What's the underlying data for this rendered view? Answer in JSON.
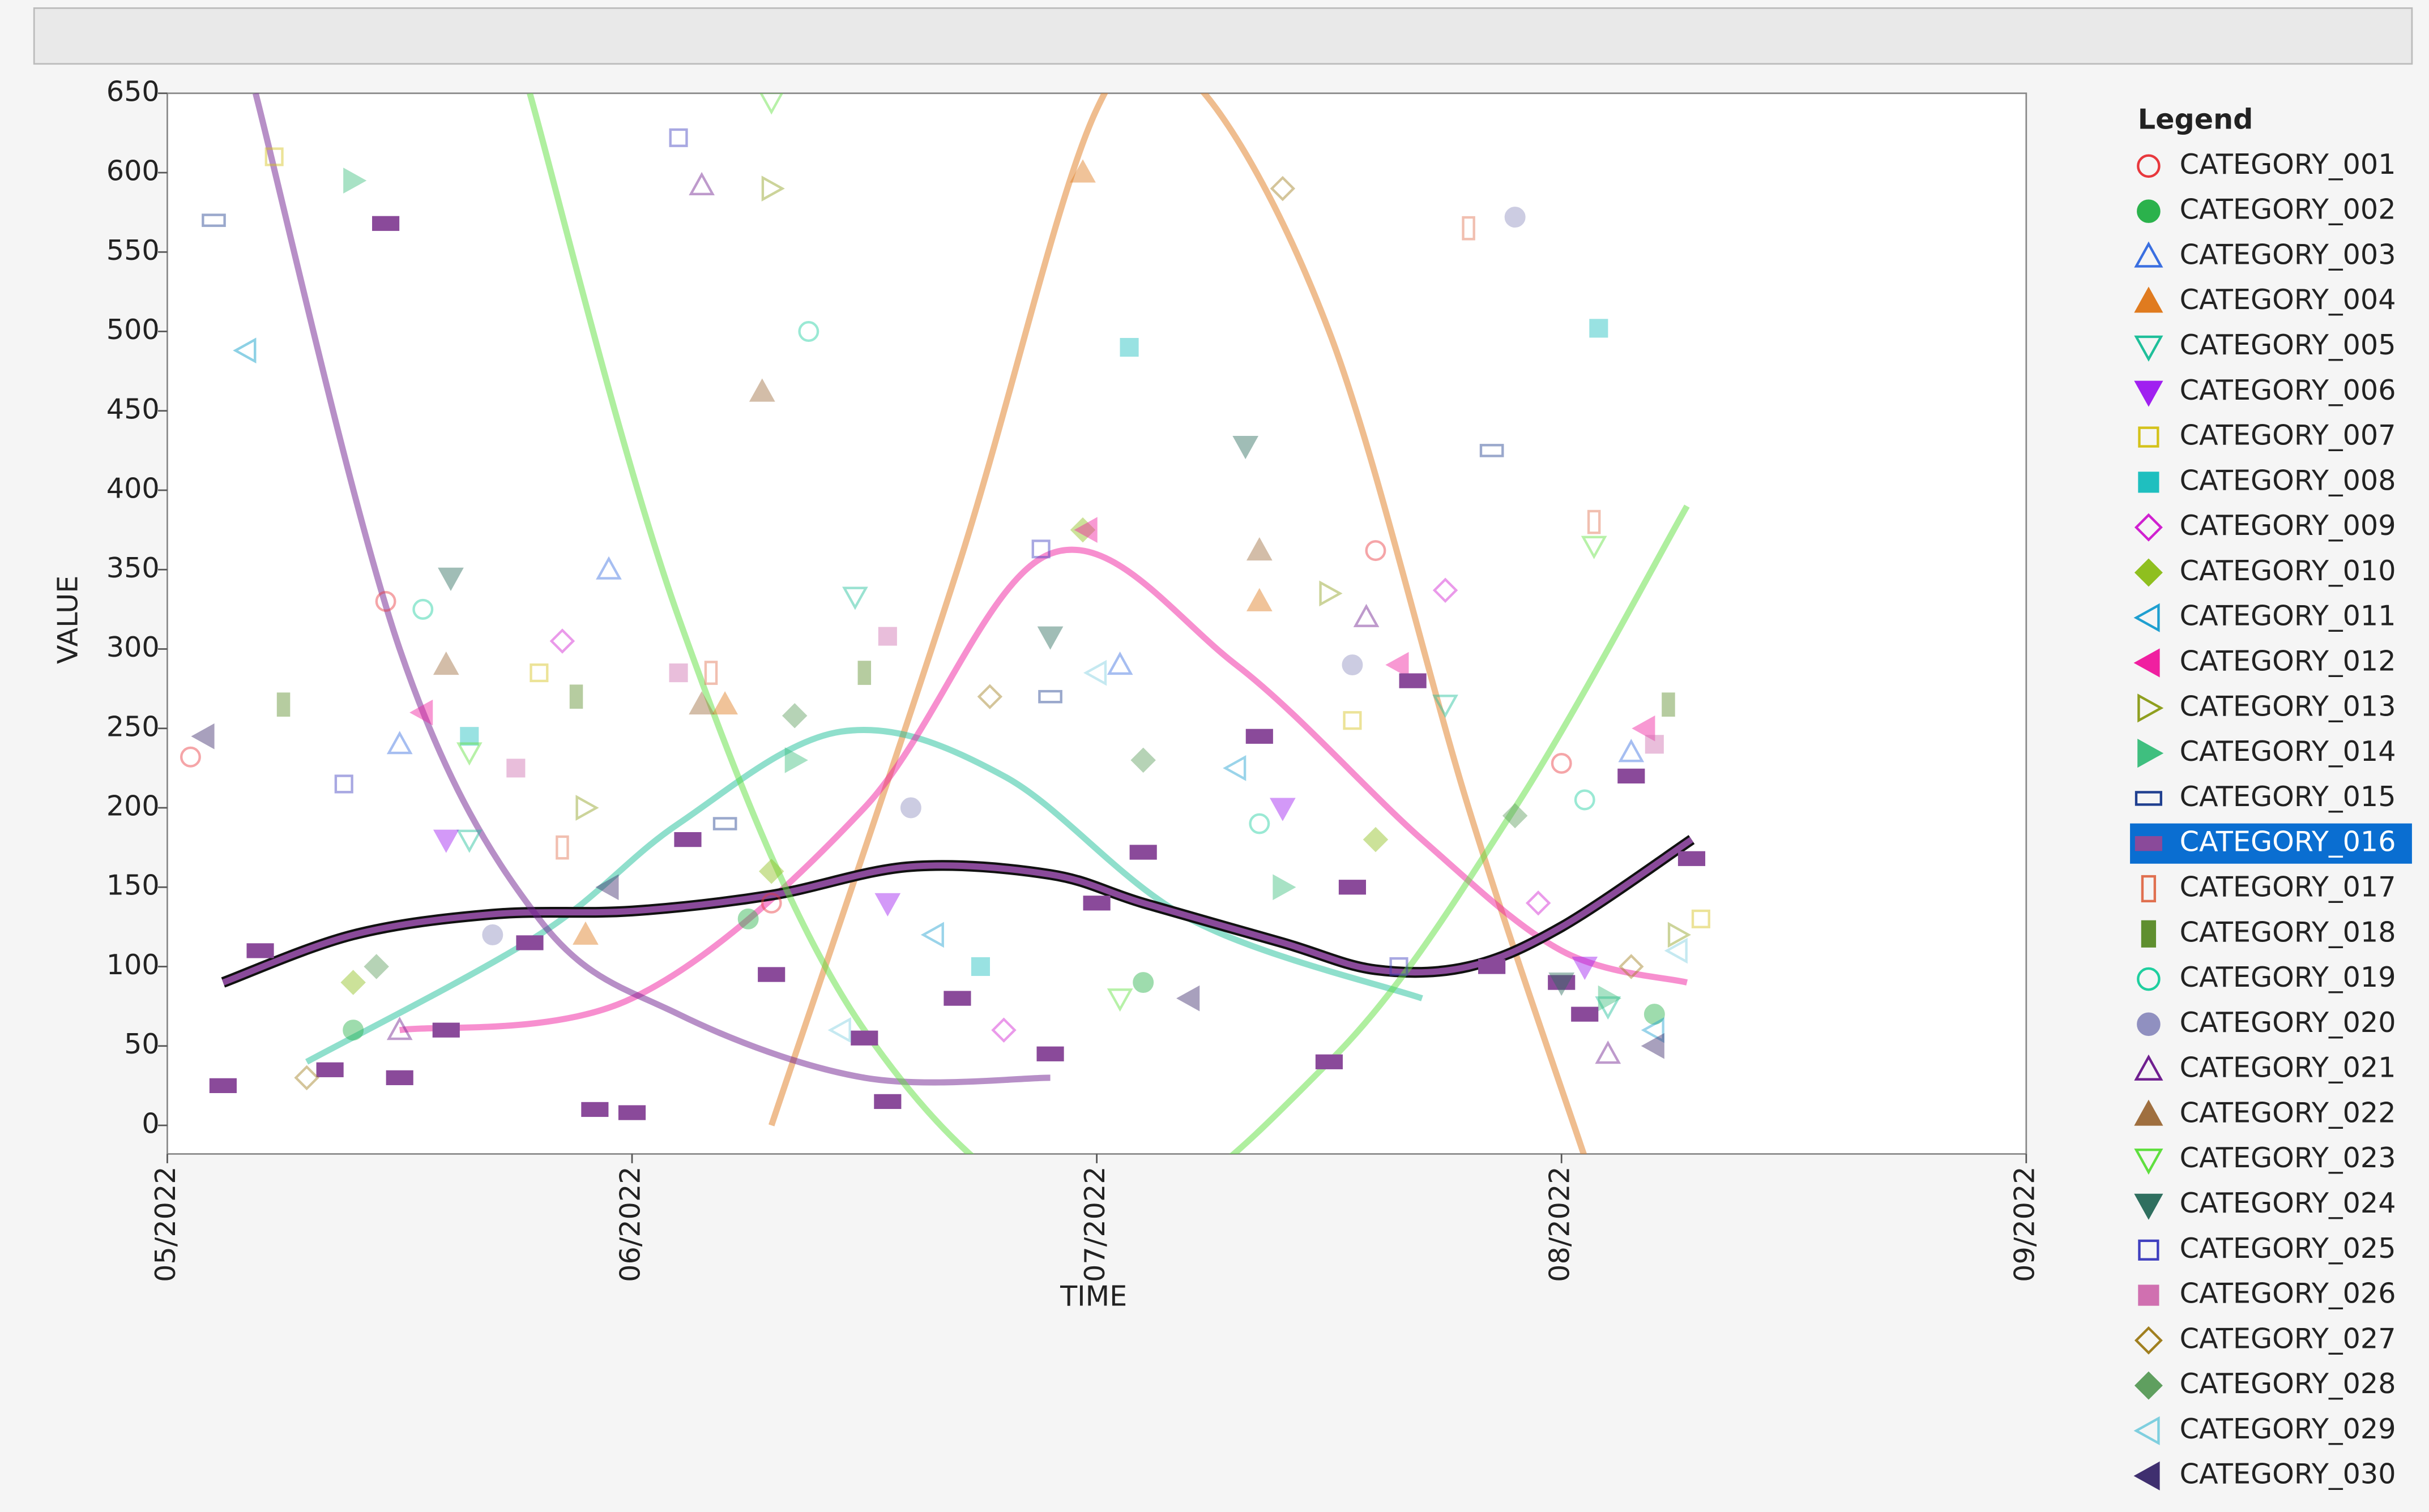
{
  "chart_data": {
    "type": "scatter",
    "x_label": "TIME",
    "y_label": "VALUE",
    "legend_title": "Legend",
    "legend": "right",
    "xlim": [
      0,
      4
    ],
    "xticks": [
      {
        "value": 0,
        "label": "05/2022"
      },
      {
        "value": 1,
        "label": "06/2022"
      },
      {
        "value": 2,
        "label": "07/2022"
      },
      {
        "value": 3,
        "label": "08/2022"
      },
      {
        "value": 4,
        "label": "09/2022"
      }
    ],
    "ylim": [
      -18,
      650
    ],
    "yticks": [
      0,
      50,
      100,
      150,
      200,
      250,
      300,
      350,
      400,
      450,
      500,
      550,
      600,
      650
    ],
    "series": [
      {
        "name": "CATEGORY_001",
        "color": "#e8383d",
        "marker": "circle",
        "filled": false,
        "x": [
          0.05,
          0.47,
          1.3,
          2.6,
          3.0
        ],
        "values": [
          232,
          330,
          140,
          362,
          228
        ]
      },
      {
        "name": "CATEGORY_002",
        "color": "#2bb24c",
        "marker": "circle",
        "filled": true,
        "x": [
          0.4,
          1.25,
          2.1,
          3.2
        ],
        "values": [
          60,
          130,
          90,
          70
        ]
      },
      {
        "name": "CATEGORY_003",
        "color": "#3a6fe0",
        "marker": "triangle",
        "filled": false,
        "x": [
          0.95,
          0.5,
          2.05,
          3.15
        ],
        "values": [
          350,
          240,
          290,
          235
        ]
      },
      {
        "name": "CATEGORY_004",
        "color": "#e07b1f",
        "marker": "triangle",
        "filled": true,
        "x": [
          1.2,
          1.97,
          2.35,
          0.9
        ],
        "values": [
          265,
          600,
          330,
          120
        ],
        "fit": {
          "x": [
            1.3,
            1.7,
            2.0,
            2.2,
            2.5,
            2.8,
            3.05
          ],
          "values": [
            0,
            350,
            640,
            660,
            500,
            200,
            -20
          ]
        }
      },
      {
        "name": "CATEGORY_005",
        "color": "#1fbf9a",
        "marker": "triangle-down",
        "filled": false,
        "x": [
          1.48,
          2.75,
          0.65,
          3.1
        ],
        "values": [
          333,
          265,
          180,
          75
        ],
        "fit": {
          "x": [
            0.3,
            0.8,
            1.1,
            1.45,
            1.8,
            2.2,
            2.7
          ],
          "values": [
            40,
            120,
            190,
            248,
            220,
            130,
            80
          ]
        }
      },
      {
        "name": "CATEGORY_006",
        "color": "#a020f0",
        "marker": "triangle-down",
        "filled": true,
        "x": [
          0.6,
          1.55,
          2.4,
          3.05
        ],
        "values": [
          180,
          140,
          200,
          100
        ]
      },
      {
        "name": "CATEGORY_007",
        "color": "#d4c21a",
        "marker": "square",
        "filled": false,
        "x": [
          0.23,
          0.8,
          2.55,
          3.3
        ],
        "values": [
          610,
          285,
          255,
          130
        ]
      },
      {
        "name": "CATEGORY_008",
        "color": "#1fbfbf",
        "marker": "square",
        "filled": true,
        "x": [
          0.65,
          2.07,
          3.08,
          1.75
        ],
        "values": [
          245,
          490,
          502,
          100
        ]
      },
      {
        "name": "CATEGORY_009",
        "color": "#d020d0",
        "marker": "diamond",
        "filled": false,
        "x": [
          0.85,
          2.75,
          1.8,
          2.95
        ],
        "values": [
          305,
          337,
          60,
          140
        ]
      },
      {
        "name": "CATEGORY_010",
        "color": "#8fbf1f",
        "marker": "diamond",
        "filled": true,
        "x": [
          1.97,
          1.3,
          0.4,
          2.6
        ],
        "values": [
          375,
          160,
          90,
          180
        ]
      },
      {
        "name": "CATEGORY_011",
        "color": "#1f9fd0",
        "marker": "triangle-left",
        "filled": false,
        "x": [
          0.17,
          1.65,
          2.3,
          3.2
        ],
        "values": [
          488,
          120,
          225,
          60
        ]
      },
      {
        "name": "CATEGORY_012",
        "color": "#f01fa0",
        "marker": "triangle-left",
        "filled": true,
        "x": [
          0.55,
          1.98,
          2.65,
          3.18
        ],
        "values": [
          260,
          375,
          290,
          250
        ],
        "fit": {
          "x": [
            0.5,
            1.0,
            1.5,
            1.9,
            2.3,
            2.7,
            3.0,
            3.27
          ],
          "values": [
            60,
            80,
            200,
            360,
            290,
            180,
            110,
            90
          ]
        }
      },
      {
        "name": "CATEGORY_013",
        "color": "#8f9f1f",
        "marker": "triangle-right",
        "filled": false,
        "x": [
          1.3,
          2.5,
          0.9,
          3.25
        ],
        "values": [
          590,
          335,
          200,
          120
        ]
      },
      {
        "name": "CATEGORY_014",
        "color": "#3fbf7f",
        "marker": "triangle-right",
        "filled": true,
        "x": [
          0.4,
          1.35,
          2.4,
          3.1
        ],
        "values": [
          595,
          230,
          150,
          80
        ]
      },
      {
        "name": "CATEGORY_015",
        "color": "#1f3f8f",
        "marker": "rect-wide",
        "filled": false,
        "x": [
          0.1,
          1.9,
          2.85,
          1.2
        ],
        "values": [
          570,
          270,
          425,
          190
        ]
      },
      {
        "name": "CATEGORY_016",
        "color": "#8a4a9a",
        "marker": "rect-wide",
        "filled": true,
        "selected": true,
        "x": [
          0.12,
          0.2,
          0.35,
          0.47,
          0.6,
          0.78,
          0.92,
          1.12,
          1.3,
          1.55,
          1.7,
          1.9,
          2.1,
          2.35,
          2.55,
          2.68,
          2.85,
          3.0,
          3.15,
          3.28,
          0.5,
          1.0,
          1.5,
          2.0,
          2.5,
          3.05
        ],
        "values": [
          25,
          110,
          35,
          568,
          60,
          115,
          10,
          180,
          95,
          15,
          80,
          45,
          172,
          245,
          150,
          280,
          100,
          90,
          220,
          168,
          30,
          8,
          55,
          140,
          40,
          70
        ],
        "fit": {
          "x": [
            0.12,
            0.4,
            0.7,
            1.0,
            1.3,
            1.6,
            1.9,
            2.1,
            2.4,
            2.6,
            2.8,
            3.0,
            3.28
          ],
          "values": [
            90,
            120,
            133,
            135,
            145,
            163,
            158,
            140,
            115,
            98,
            100,
            125,
            180
          ]
        }
      },
      {
        "name": "CATEGORY_017",
        "color": "#e07050",
        "marker": "rect-tall",
        "filled": false,
        "x": [
          0.85,
          1.17,
          2.8,
          3.07
        ],
        "values": [
          175,
          285,
          565,
          380
        ]
      },
      {
        "name": "CATEGORY_018",
        "color": "#5f8f2f",
        "marker": "rect-tall",
        "filled": true,
        "x": [
          0.25,
          0.88,
          1.5,
          3.23
        ],
        "values": [
          265,
          270,
          285,
          265
        ]
      },
      {
        "name": "CATEGORY_019",
        "color": "#1fcf9f",
        "marker": "circle",
        "filled": false,
        "x": [
          1.38,
          0.55,
          2.35,
          3.05
        ],
        "values": [
          500,
          325,
          190,
          205
        ]
      },
      {
        "name": "CATEGORY_020",
        "color": "#9090c0",
        "marker": "circle",
        "filled": true,
        "x": [
          2.9,
          2.55,
          1.6,
          0.7
        ],
        "values": [
          572,
          290,
          200,
          120
        ]
      },
      {
        "name": "CATEGORY_021",
        "color": "#6f1f8f",
        "marker": "triangle",
        "filled": false,
        "x": [
          1.15,
          2.58,
          0.5,
          3.1
        ],
        "values": [
          592,
          320,
          60,
          45
        ],
        "fit": {
          "x": [
            0.19,
            0.5,
            0.8,
            1.1,
            1.5,
            1.9
          ],
          "values": [
            650,
            300,
            130,
            70,
            30,
            30
          ]
        }
      },
      {
        "name": "CATEGORY_022",
        "color": "#9f6f3f",
        "marker": "triangle",
        "filled": true,
        "x": [
          1.28,
          2.35,
          0.6,
          1.15
        ],
        "values": [
          462,
          362,
          290,
          265
        ]
      },
      {
        "name": "CATEGORY_023",
        "color": "#5fdf3f",
        "marker": "triangle-down",
        "filled": false,
        "x": [
          1.3,
          0.65,
          2.05,
          3.07
        ],
        "values": [
          645,
          235,
          80,
          365
        ],
        "fit": {
          "x": [
            0.78,
            1.1,
            1.5,
            2.0,
            2.5,
            2.9,
            3.27
          ],
          "values": [
            650,
            320,
            60,
            -60,
            40,
            200,
            390
          ]
        }
      },
      {
        "name": "CATEGORY_024",
        "color": "#2f6f5f",
        "marker": "triangle-down",
        "filled": true,
        "x": [
          2.32,
          0.61,
          1.9,
          3.0
        ],
        "values": [
          428,
          345,
          308,
          90
        ]
      },
      {
        "name": "CATEGORY_025",
        "color": "#3f3fbf",
        "marker": "square",
        "filled": false,
        "x": [
          1.1,
          1.88,
          2.65,
          0.38
        ],
        "values": [
          622,
          363,
          100,
          215
        ]
      },
      {
        "name": "CATEGORY_026",
        "color": "#d070b0",
        "marker": "square",
        "filled": true,
        "x": [
          1.1,
          1.55,
          3.2,
          0.75
        ],
        "values": [
          285,
          308,
          240,
          225
        ]
      },
      {
        "name": "CATEGORY_027",
        "color": "#a07f1f",
        "marker": "diamond",
        "filled": false,
        "x": [
          2.4,
          1.77,
          0.3,
          3.15
        ],
        "values": [
          590,
          270,
          30,
          100
        ]
      },
      {
        "name": "CATEGORY_028",
        "color": "#5f9f5f",
        "marker": "diamond",
        "filled": true,
        "x": [
          1.35,
          2.1,
          0.45,
          2.9
        ],
        "values": [
          258,
          230,
          100,
          195
        ]
      },
      {
        "name": "CATEGORY_029",
        "color": "#7fcfdf",
        "marker": "triangle-left",
        "filled": false,
        "x": [
          0.17,
          2.0,
          1.45,
          3.25
        ],
        "values": [
          488,
          285,
          60,
          110
        ]
      },
      {
        "name": "CATEGORY_030",
        "color": "#3f2f6f",
        "marker": "triangle-left",
        "filled": true,
        "x": [
          0.08,
          0.95,
          2.2,
          3.2
        ],
        "values": [
          245,
          150,
          80,
          50
        ]
      }
    ]
  }
}
